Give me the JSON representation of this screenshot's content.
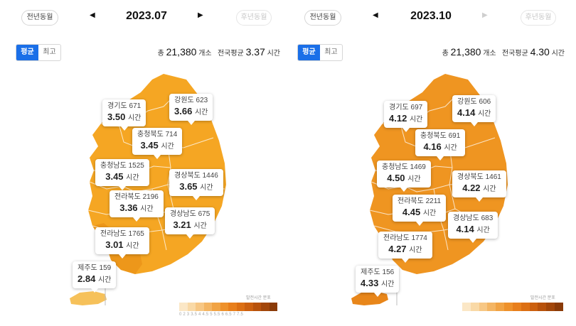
{
  "colors": {
    "accent": "#1a6fe8",
    "land_left": "#f5a623",
    "land_right": "#ef9521",
    "region_darker": "#e68a14",
    "island": "#f6c15a",
    "legend_scale": [
      "#fbe7c6",
      "#f9d9a6",
      "#f7c784",
      "#f4b563",
      "#f1a344",
      "#ee912b",
      "#e87f1c",
      "#dc6f13",
      "#cc600f",
      "#b8520c",
      "#a2460a",
      "#8a3a08"
    ]
  },
  "panels": [
    {
      "prev_label": "전년동월",
      "next_label": "후년동월",
      "next_disabled": true,
      "prev_arrow": "◀",
      "next_arrow": "▶",
      "next_arrow_disabled": false,
      "period": "2023.07",
      "tabs": {
        "avg": "평균",
        "max": "최고",
        "active": "avg"
      },
      "summary": {
        "total_prefix": "총",
        "total_value": "21,380",
        "total_unit": "개소",
        "avg_label": "전국평균",
        "avg_value": "3.37",
        "avg_unit": "시간"
      },
      "regions": [
        {
          "name": "경기도 671",
          "value": "3.50",
          "unit": "시간"
        },
        {
          "name": "강원도 623",
          "value": "3.66",
          "unit": "시간"
        },
        {
          "name": "충청북도 714",
          "value": "3.45",
          "unit": "시간"
        },
        {
          "name": "충청남도 1525",
          "value": "3.45",
          "unit": "시간"
        },
        {
          "name": "경상북도 1446",
          "value": "3.65",
          "unit": "시간"
        },
        {
          "name": "전라북도 2196",
          "value": "3.36",
          "unit": "시간"
        },
        {
          "name": "경상남도 675",
          "value": "3.21",
          "unit": "시간"
        },
        {
          "name": "전라남도 1765",
          "value": "3.01",
          "unit": "시간"
        },
        {
          "name": "제주도 159",
          "value": "2.84",
          "unit": "시간"
        }
      ],
      "legend_title": "발전시간 분포",
      "legend_ticks": "0  2  3  3.5  4  4.5  5  5.5  6  6.5  7  7.5"
    },
    {
      "prev_label": "전년동월",
      "next_label": "후년동월",
      "next_disabled": true,
      "prev_arrow": "◀",
      "next_arrow": "▶",
      "next_arrow_disabled": true,
      "period": "2023.10",
      "tabs": {
        "avg": "평균",
        "max": "최고",
        "active": "avg"
      },
      "summary": {
        "total_prefix": "총",
        "total_value": "21,380",
        "total_unit": "개소",
        "avg_label": "전국평균",
        "avg_value": "4.30",
        "avg_unit": "시간"
      },
      "regions": [
        {
          "name": "경기도 697",
          "value": "4.12",
          "unit": "시간"
        },
        {
          "name": "강원도 606",
          "value": "4.14",
          "unit": "시간"
        },
        {
          "name": "충청북도 691",
          "value": "4.16",
          "unit": "시간"
        },
        {
          "name": "충청남도 1469",
          "value": "4.50",
          "unit": "시간"
        },
        {
          "name": "경상북도 1461",
          "value": "4.22",
          "unit": "시간"
        },
        {
          "name": "전라북도 2211",
          "value": "4.45",
          "unit": "시간"
        },
        {
          "name": "경상남도 683",
          "value": "4.14",
          "unit": "시간"
        },
        {
          "name": "전라남도 1774",
          "value": "4.27",
          "unit": "시간"
        },
        {
          "name": "제주도 156",
          "value": "4.33",
          "unit": "시간"
        }
      ],
      "legend_title": "발전시간 분포",
      "legend_ticks": ""
    }
  ]
}
